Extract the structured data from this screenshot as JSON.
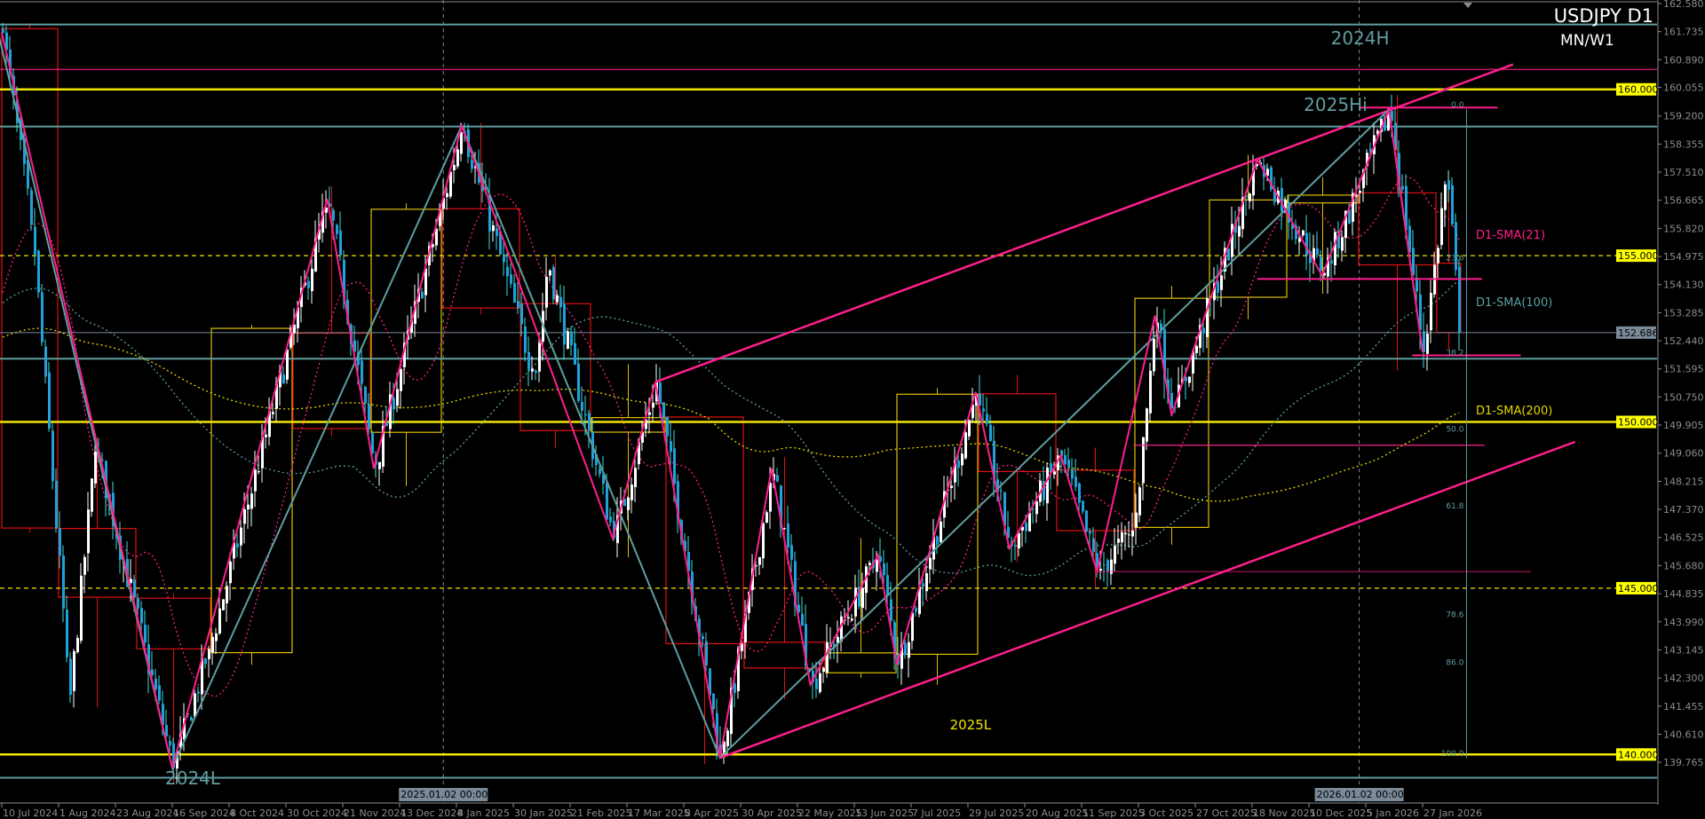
{
  "header": {
    "symbol_timeframe": "USDJPY D1",
    "overlay_timeframes": "MN/W1"
  },
  "colors": {
    "background": "#000000",
    "bull_body": "#ffffff",
    "bear_body": "#1fa2dc",
    "bear_wick": "#38e0e0",
    "level_yellow": "#f2e600",
    "magenta": "#ff1e8c",
    "teal": "#5f9ea0",
    "grid": "#7a8a99",
    "month_bull": "#e0c000",
    "month_bear": "#e01010",
    "axis_text": "#8c8c8c"
  },
  "price_axis": {
    "max": 162.58,
    "min": 139.765,
    "ticks": [
      "162.580",
      "161.735",
      "160.890",
      "160.055",
      "159.200",
      "158.355",
      "157.510",
      "156.665",
      "155.820",
      "154.975",
      "154.130",
      "153.285",
      "152.440",
      "151.595",
      "150.750",
      "149.905",
      "149.060",
      "148.215",
      "147.370",
      "146.525",
      "145.680",
      "144.835",
      "143.990",
      "143.145",
      "142.300",
      "141.455",
      "140.610",
      "139.765"
    ],
    "highlighted": [
      {
        "label": "160.000",
        "price": 160.0,
        "style": "yellow"
      },
      {
        "label": "155.000",
        "price": 155.0,
        "style": "yellow"
      },
      {
        "label": "152.686",
        "price": 152.686,
        "style": "gray"
      },
      {
        "label": "150.000",
        "price": 150.0,
        "style": "yellow"
      },
      {
        "label": "145.000",
        "price": 145.0,
        "style": "yellow"
      },
      {
        "label": "140.000",
        "price": 140.0,
        "style": "yellow"
      }
    ]
  },
  "time_axis": {
    "ticks": [
      "10 Jul 2024",
      "1 Aug 2024",
      "23 Aug 2024",
      "16 Sep 2024",
      "8 Oct 2024",
      "30 Oct 2024",
      "21 Nov 2024",
      "13 Dec 2024",
      "8 Jan 2025",
      "30 Jan 2025",
      "21 Feb 2025",
      "17 Mar 2025",
      "8 Apr 2025",
      "30 Apr 2025",
      "22 May 2025",
      "13 Jun 2025",
      "7 Jul 2025",
      "29 Jul 2025",
      "20 Aug 2025",
      "11 Sep 2025",
      "3 Oct 2025",
      "27 Oct 2025",
      "18 Nov 2025",
      "10 Dec 2025",
      "5 Jan 2026",
      "27 Jan 2026"
    ],
    "crosshair_labels": [
      {
        "label": "2025.01.02 00:00",
        "date": "2 Jan 2025"
      },
      {
        "label": "2026.01.02 00:00",
        "date": "2 Jan 2026"
      }
    ]
  },
  "price_pivots": [
    [
      "10 Jul 2024",
      161.7
    ],
    [
      "22 Jul 2024",
      155.4
    ],
    [
      "5 Aug 2024",
      141.7
    ],
    [
      "15 Aug 2024",
      149.3
    ],
    [
      "16 Sep 2024",
      139.6
    ],
    [
      "1 Oct 2024",
      143.5
    ],
    [
      "15 Nov 2024",
      156.7
    ],
    [
      "3 Dec 2024",
      148.6
    ],
    [
      "10 Jan 2025",
      158.9
    ],
    [
      "7 Feb 2025",
      151.3
    ],
    [
      "12 Feb 2025",
      154.8
    ],
    [
      "11 Mar 2025",
      146.5
    ],
    [
      "28 Mar 2025",
      151.2
    ],
    [
      "22 Apr 2025",
      139.9
    ],
    [
      "12 May 2025",
      148.6
    ],
    [
      "27 May 2025",
      142.1
    ],
    [
      "23 Jun 2025",
      146.0
    ],
    [
      "1 Jul 2025",
      142.7
    ],
    [
      "1 Aug 2025",
      150.9
    ],
    [
      "14 Aug 2025",
      146.2
    ],
    [
      "3 Sep 2025",
      149.0
    ],
    [
      "17 Sep 2025",
      145.5
    ],
    [
      "1 Oct 2025",
      146.8
    ],
    [
      "10 Oct 2025",
      153.2
    ],
    [
      "17 Oct 2025",
      150.2
    ],
    [
      "20 Nov 2025",
      157.9
    ],
    [
      "16 Dec 2025",
      154.4
    ],
    [
      "14 Jan 2026",
      159.4
    ],
    [
      "27 Jan 2026",
      152.1
    ],
    [
      "5 Feb 2026",
      157.6
    ],
    [
      "10 Feb 2026",
      152.686
    ]
  ],
  "levels": [
    {
      "name": "level-160",
      "price": 160.0,
      "color": "#f2e600",
      "width": 2.5,
      "dash": ""
    },
    {
      "name": "level-155",
      "price": 155.0,
      "color": "#f2e600",
      "width": 1.2,
      "dash": "5,4"
    },
    {
      "name": "level-150",
      "price": 150.0,
      "color": "#f2e600",
      "width": 2.5,
      "dash": ""
    },
    {
      "name": "level-145",
      "price": 145.0,
      "color": "#f2e600",
      "width": 1.2,
      "dash": "5,4"
    },
    {
      "name": "level-140",
      "price": 140.0,
      "color": "#f2e600",
      "width": 2.5,
      "dash": ""
    },
    {
      "name": "level-2024-high-top",
      "price": 161.95,
      "color": "#5f9ea0",
      "width": 2,
      "dash": ""
    },
    {
      "name": "level-2024-high",
      "price": 160.6,
      "color": "#ff1e8c",
      "width": 1.2,
      "dash": ""
    },
    {
      "name": "level-2025-high",
      "price": 158.88,
      "color": "#5f9ea0",
      "width": 2,
      "dash": ""
    },
    {
      "name": "level-current-price",
      "price": 152.686,
      "color": "#7a8a99",
      "width": 1,
      "dash": ""
    },
    {
      "name": "level-support-teal",
      "price": 151.9,
      "color": "#5f9ea0",
      "width": 2,
      "dash": ""
    },
    {
      "name": "level-2024-low",
      "price": 139.3,
      "color": "#5f9ea0",
      "width": 2,
      "dash": ""
    }
  ],
  "segments": [
    {
      "name": "magenta-2025-high-segment",
      "from": [
        "2 Jan 2026",
        159.45
      ],
      "to": [
        "25 Feb 2026",
        159.45
      ],
      "color": "#ff1e8c",
      "width": 2
    },
    {
      "name": "magenta-154-segment",
      "from": [
        "20 Nov 2025",
        154.3
      ],
      "to": [
        "19 Feb 2026",
        154.3
      ],
      "color": "#ff1e8c",
      "width": 2
    },
    {
      "name": "magenta-152-segment",
      "from": [
        "23 Jan 2026",
        152.0
      ],
      "to": [
        "6 Mar 2026",
        152.0
      ],
      "color": "#ff1e8c",
      "width": 2
    },
    {
      "name": "magenta-149-segment",
      "from": [
        "1 Oct 2025",
        149.3
      ],
      "to": [
        "20 Feb 2026",
        149.3
      ],
      "color": "#ff1e8c",
      "width": 1.2
    },
    {
      "name": "magenta-145-segment",
      "from": [
        "17 Sep 2025",
        145.5
      ],
      "to": [
        "10 Mar 2026",
        145.5
      ],
      "color": "#ff1e8c",
      "width": 0.8
    },
    {
      "name": "upper-channel-trendline",
      "from": [
        "28 Mar 2025",
        151.2
      ],
      "to": [
        "3 Mar 2026",
        160.75
      ],
      "color": "#ff1e8c",
      "width": 2.5
    },
    {
      "name": "lower-channel-trendline",
      "from": [
        "22 Apr 2025",
        139.9
      ],
      "to": [
        "27 Mar 2026",
        149.4
      ],
      "color": "#ff1e8c",
      "width": 2.5
    }
  ],
  "zigzag_major": [
    [
      "8 Jul 2024",
      161.9
    ],
    [
      "16 Sep 2024",
      139.6
    ],
    [
      "10 Jan 2025",
      158.9
    ],
    [
      "22 Apr 2025",
      139.9
    ],
    [
      "14 Jan 2026",
      159.4
    ],
    [
      "27 Jan 2026",
      152.1
    ]
  ],
  "zigzag_minor": [
    [
      "10 Jul 2024",
      161.7
    ],
    [
      "16 Sep 2024",
      139.6
    ],
    [
      "15 Nov 2024",
      156.7
    ],
    [
      "3 Dec 2024",
      148.6
    ],
    [
      "10 Jan 2025",
      158.9
    ],
    [
      "11 Mar 2025",
      146.5
    ],
    [
      "28 Mar 2025",
      151.2
    ],
    [
      "22 Apr 2025",
      139.9
    ],
    [
      "12 May 2025",
      148.6
    ],
    [
      "27 May 2025",
      142.1
    ],
    [
      "23 Jun 2025",
      146.0
    ],
    [
      "1 Jul 2025",
      142.7
    ],
    [
      "1 Aug 2025",
      150.9
    ],
    [
      "14 Aug 2025",
      146.2
    ],
    [
      "3 Sep 2025",
      149.0
    ],
    [
      "17 Sep 2025",
      145.5
    ],
    [
      "10 Oct 2025",
      153.2
    ],
    [
      "17 Oct 2025",
      150.2
    ],
    [
      "20 Nov 2025",
      157.9
    ],
    [
      "16 Dec 2025",
      154.4
    ],
    [
      "14 Jan 2026",
      159.4
    ],
    [
      "27 Jan 2026",
      152.1
    ]
  ],
  "fibonacci": {
    "high": 159.4,
    "low": 139.9,
    "anchor_date": "13 Feb 2026",
    "levels": [
      {
        "label": "0.0",
        "ratio": 0
      },
      {
        "label": "23.6",
        "ratio": 0.236
      },
      {
        "label": "38.2",
        "ratio": 0.382
      },
      {
        "label": "50.0",
        "ratio": 0.5
      },
      {
        "label": "61.8",
        "ratio": 0.618
      },
      {
        "label": "78.6",
        "ratio": 0.786
      },
      {
        "label": "86.0",
        "ratio": 0.86
      },
      {
        "label": "100.0",
        "ratio": 1
      }
    ]
  },
  "moving_averages": [
    {
      "label": "D1-SMA(21)",
      "period": 21,
      "color": "#ff1e8c"
    },
    {
      "label": "D1-SMA(100)",
      "period": 100,
      "color": "#5f9ea0"
    },
    {
      "label": "D1-SMA(200)",
      "period": 200,
      "color": "#e6d800"
    }
  ],
  "annotations": [
    {
      "text": "2024H",
      "date": "20 Dec 2025",
      "price": 161.35,
      "color": "#5f9ea0"
    },
    {
      "text": "2025Hi",
      "date": "8 Dec 2025",
      "price": 159.35,
      "color": "#5f9ea0"
    },
    {
      "text": "2025L",
      "date": "22 Jul 2025",
      "price": 140.75,
      "color": "#f2e600"
    },
    {
      "text": "2024L",
      "date": "13 Sep 2024",
      "price": 139.1,
      "color": "#5f9ea0"
    }
  ]
}
